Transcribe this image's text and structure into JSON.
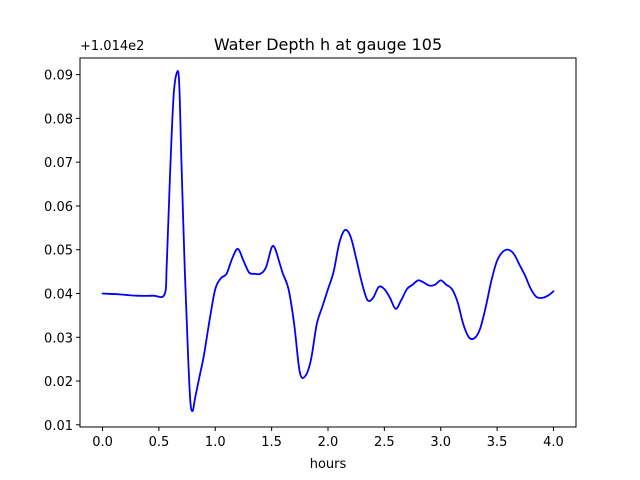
{
  "chart_data": {
    "type": "line",
    "title": "Water Depth h at gauge 105",
    "xlabel": "hours",
    "ylabel": "",
    "y_offset_label": "+1.014e2",
    "xlim": [
      -0.2,
      4.2
    ],
    "ylim": [
      0.0095,
      0.0938
    ],
    "x_ticks": [
      0.0,
      0.5,
      1.0,
      1.5,
      2.0,
      2.5,
      3.0,
      3.5,
      4.0
    ],
    "x_tick_labels": [
      "0.0",
      "0.5",
      "1.0",
      "1.5",
      "2.0",
      "2.5",
      "3.0",
      "3.5",
      "4.0"
    ],
    "y_ticks": [
      0.01,
      0.02,
      0.03,
      0.04,
      0.05,
      0.06,
      0.07,
      0.08,
      0.09
    ],
    "y_tick_labels": [
      "0.01",
      "0.02",
      "0.03",
      "0.04",
      "0.05",
      "0.06",
      "0.07",
      "0.08",
      "0.09"
    ],
    "grid": false,
    "legend": "none",
    "series": [
      {
        "color": "#0000ff",
        "x": [
          0.0,
          0.15,
          0.3,
          0.45,
          0.55,
          0.57,
          0.6,
          0.63,
          0.66,
          0.68,
          0.7,
          0.73,
          0.76,
          0.78,
          0.8,
          0.82,
          0.86,
          0.9,
          0.95,
          1.0,
          1.05,
          1.1,
          1.15,
          1.2,
          1.25,
          1.3,
          1.35,
          1.4,
          1.45,
          1.5,
          1.53,
          1.57,
          1.6,
          1.65,
          1.7,
          1.75,
          1.8,
          1.85,
          1.9,
          1.95,
          2.0,
          2.05,
          2.1,
          2.15,
          2.2,
          2.25,
          2.3,
          2.35,
          2.4,
          2.45,
          2.5,
          2.55,
          2.6,
          2.65,
          2.7,
          2.75,
          2.8,
          2.85,
          2.9,
          2.95,
          3.0,
          3.05,
          3.1,
          3.15,
          3.2,
          3.25,
          3.3,
          3.35,
          3.4,
          3.45,
          3.5,
          3.55,
          3.6,
          3.65,
          3.7,
          3.75,
          3.8,
          3.85,
          3.9,
          3.95,
          4.0
        ],
        "y": [
          0.04,
          0.0398,
          0.0395,
          0.0395,
          0.0398,
          0.047,
          0.068,
          0.085,
          0.0905,
          0.088,
          0.07,
          0.045,
          0.025,
          0.015,
          0.0132,
          0.016,
          0.021,
          0.026,
          0.034,
          0.041,
          0.0435,
          0.0445,
          0.048,
          0.0502,
          0.0475,
          0.0448,
          0.0445,
          0.0445,
          0.046,
          0.0505,
          0.0503,
          0.047,
          0.0445,
          0.041,
          0.033,
          0.022,
          0.0212,
          0.025,
          0.033,
          0.037,
          0.041,
          0.045,
          0.0515,
          0.0545,
          0.053,
          0.048,
          0.0425,
          0.0385,
          0.039,
          0.0415,
          0.041,
          0.039,
          0.0365,
          0.0385,
          0.041,
          0.042,
          0.043,
          0.0425,
          0.0418,
          0.042,
          0.043,
          0.042,
          0.041,
          0.038,
          0.033,
          0.03,
          0.0298,
          0.032,
          0.037,
          0.043,
          0.0475,
          0.0495,
          0.05,
          0.049,
          0.0465,
          0.044,
          0.041,
          0.0392,
          0.039,
          0.0395,
          0.0405
        ]
      }
    ]
  }
}
